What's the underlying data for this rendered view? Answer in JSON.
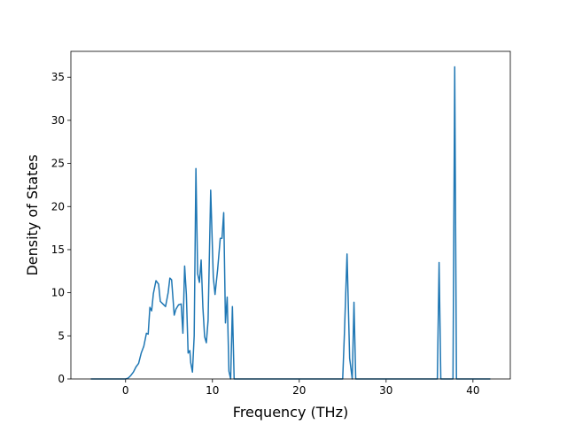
{
  "chart_data": {
    "type": "line",
    "title": "",
    "xlabel": "Frequency (THz)",
    "ylabel": "Density of States",
    "xlim": [
      -6.3,
      44.3
    ],
    "ylim": [
      0,
      38
    ],
    "xticks": [
      0,
      10,
      20,
      30,
      40
    ],
    "yticks": [
      0,
      5,
      10,
      15,
      20,
      25,
      30,
      35
    ],
    "grid": false,
    "legend": "none",
    "color": "#1f77b4",
    "series": [
      {
        "x": [
          -4.0,
          0.0,
          0.3,
          0.6,
          0.9,
          1.2,
          1.5,
          1.8,
          2.1,
          2.4,
          2.6,
          2.8,
          3.0,
          3.2,
          3.5,
          3.8,
          4.0,
          4.3,
          4.6,
          4.9,
          5.1,
          5.3,
          5.6,
          5.8,
          6.1,
          6.4,
          6.6,
          6.8,
          7.0,
          7.2,
          7.4,
          7.5,
          7.7,
          7.9,
          8.1,
          8.3,
          8.5,
          8.7,
          8.9,
          9.1,
          9.3,
          9.5,
          9.8,
          10.1,
          10.3,
          10.6,
          10.9,
          11.1,
          11.3,
          11.5,
          11.7,
          11.9,
          12.1,
          12.3,
          12.5,
          12.8,
          13.0,
          13.2,
          25.0,
          25.2,
          25.5,
          25.8,
          26.1,
          26.3,
          26.5,
          26.7,
          26.9,
          35.9,
          36.1,
          36.3,
          36.5,
          37.7,
          37.9,
          38.1,
          38.3,
          42.0
        ],
        "y": [
          0,
          0,
          0.1,
          0.4,
          0.8,
          1.4,
          1.8,
          3.0,
          3.8,
          5.3,
          5.2,
          8.3,
          7.9,
          9.9,
          11.4,
          11.0,
          9.0,
          8.7,
          8.4,
          10.0,
          11.7,
          11.5,
          7.4,
          8.1,
          8.6,
          8.7,
          5.3,
          13.1,
          9.8,
          3.0,
          3.3,
          1.9,
          0.8,
          5.0,
          24.4,
          12.2,
          11.2,
          13.8,
          8.3,
          4.9,
          4.2,
          6.8,
          21.9,
          11.8,
          9.8,
          12.7,
          16.3,
          16.3,
          19.3,
          6.5,
          9.5,
          0.9,
          0,
          8.4,
          0,
          0,
          0,
          0,
          0,
          5.3,
          14.5,
          2.4,
          0,
          8.9,
          0,
          0,
          0,
          0,
          13.5,
          0,
          0,
          0,
          36.2,
          0,
          0,
          0
        ]
      }
    ]
  }
}
